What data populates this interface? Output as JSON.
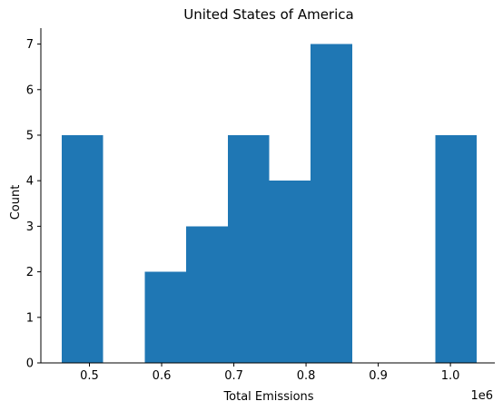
{
  "chart_data": {
    "type": "bar",
    "title": "United States of America",
    "xlabel": "Total Emissions",
    "ylabel": "Count",
    "x_offset_label": "1e6",
    "xlim": [
      0.4327,
      1.0615
    ],
    "ylim": [
      0,
      7.35
    ],
    "bin_edges": [
      0.4615,
      0.519,
      0.5765,
      0.634,
      0.6915,
      0.749,
      0.8065,
      0.864,
      0.9215,
      0.979,
      1.0365
    ],
    "counts": [
      5,
      0,
      2,
      3,
      5,
      4,
      7,
      0,
      0,
      5
    ],
    "x_ticks": [
      {
        "value": 0.5,
        "label": "0.5"
      },
      {
        "value": 0.6,
        "label": "0.6"
      },
      {
        "value": 0.7,
        "label": "0.7"
      },
      {
        "value": 0.8,
        "label": "0.8"
      },
      {
        "value": 0.9,
        "label": "0.9"
      },
      {
        "value": 1.0,
        "label": "1.0"
      }
    ],
    "y_ticks": [
      {
        "value": 0,
        "label": "0"
      },
      {
        "value": 1,
        "label": "1"
      },
      {
        "value": 2,
        "label": "2"
      },
      {
        "value": 3,
        "label": "3"
      },
      {
        "value": 4,
        "label": "4"
      },
      {
        "value": 5,
        "label": "5"
      },
      {
        "value": 6,
        "label": "6"
      },
      {
        "value": 7,
        "label": "7"
      }
    ],
    "bar_color": "#1f77b4",
    "grid": false,
    "spines": [
      "left",
      "bottom"
    ]
  }
}
